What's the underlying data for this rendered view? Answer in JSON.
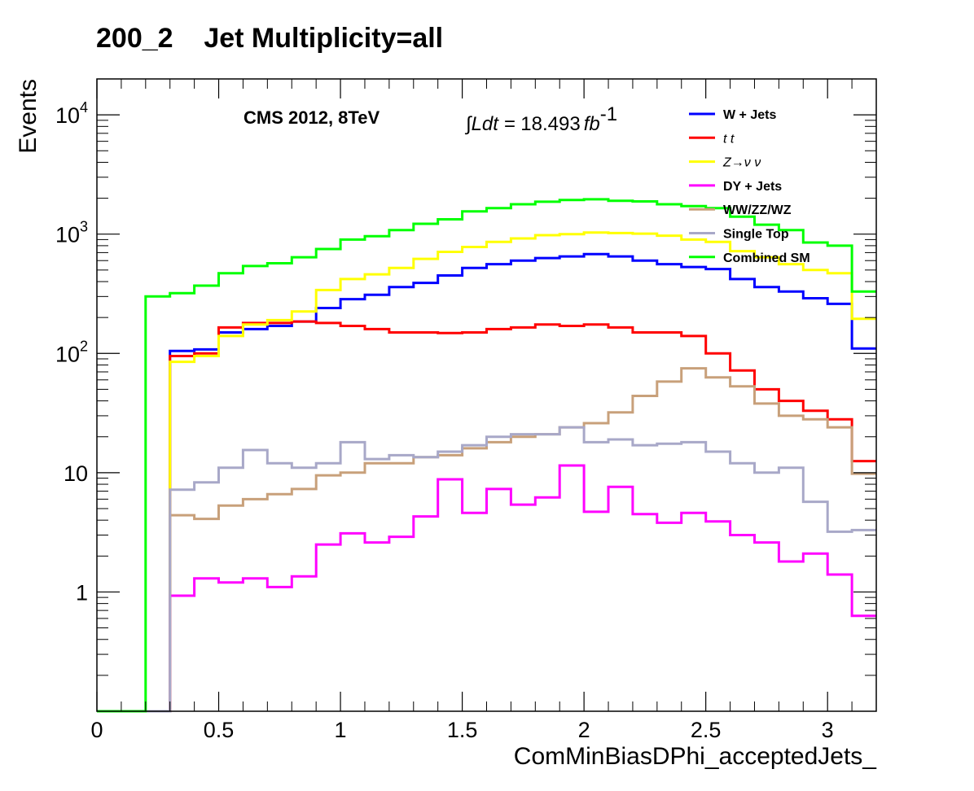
{
  "chart_data": {
    "type": "line",
    "title": "200_2    Jet Multiplicity=all",
    "xlabel": "ComMinBiasDPhi_acceptedJets_",
    "ylabel": "Events",
    "xlim": [
      0,
      3.2
    ],
    "ylim": [
      0.1,
      20000
    ],
    "yscale": "log",
    "x_ticks": [
      0,
      0.5,
      1,
      1.5,
      2,
      2.5,
      3
    ],
    "x_tick_labels": [
      "0",
      "0.5",
      "1",
      "1.5",
      "2",
      "2.5",
      "3"
    ],
    "y_ticks": [
      1,
      10,
      100,
      1000,
      10000
    ],
    "y_tick_labels": [
      {
        "base": "1",
        "exp": ""
      },
      {
        "base": "10",
        "exp": ""
      },
      {
        "base": "10",
        "exp": "2"
      },
      {
        "base": "10",
        "exp": "3"
      },
      {
        "base": "10",
        "exp": "4"
      }
    ],
    "annotations": {
      "cms": "CMS 2012, 8TeV",
      "lumi_prefix": "∫Ldt = ",
      "lumi_value": "18.493",
      "lumi_unit": "fb",
      "lumi_exp": "-1"
    },
    "legend_position": "top-right",
    "bin_edges": [
      0,
      0.1,
      0.2,
      0.3,
      0.4,
      0.5,
      0.6,
      0.7,
      0.8,
      0.9,
      1.0,
      1.1,
      1.2,
      1.3,
      1.4,
      1.5,
      1.6,
      1.7,
      1.8,
      1.9,
      2.0,
      2.1,
      2.2,
      2.3,
      2.4,
      2.5,
      2.6,
      2.7,
      2.8,
      2.9,
      3.0,
      3.1,
      3.2
    ],
    "series": [
      {
        "name": "W + Jets",
        "color": "#0000ff",
        "values": [
          0,
          0,
          0,
          105,
          108,
          150,
          160,
          170,
          185,
          240,
          285,
          310,
          360,
          390,
          450,
          520,
          560,
          600,
          630,
          650,
          680,
          650,
          600,
          560,
          530,
          510,
          420,
          360,
          330,
          290,
          260,
          110
        ]
      },
      {
        "name": "t t",
        "color": "#ff0000",
        "values": [
          0,
          0,
          0,
          95,
          100,
          165,
          180,
          180,
          185,
          180,
          170,
          160,
          150,
          150,
          148,
          150,
          160,
          165,
          175,
          170,
          175,
          165,
          150,
          150,
          140,
          100,
          72,
          50,
          40,
          33,
          28,
          12.5
        ]
      },
      {
        "name": "Z→ν ν",
        "color": "#ffff00",
        "values": [
          0,
          0,
          0,
          85,
          95,
          140,
          175,
          190,
          225,
          340,
          420,
          460,
          520,
          620,
          710,
          780,
          860,
          920,
          980,
          1000,
          1030,
          1020,
          1010,
          970,
          900,
          860,
          720,
          640,
          560,
          500,
          470,
          195
        ]
      },
      {
        "name": "DY + Jets",
        "color": "#ff00ff",
        "values": [
          0,
          0,
          0,
          0.93,
          1.3,
          1.2,
          1.3,
          1.1,
          1.35,
          2.5,
          3.1,
          2.6,
          2.9,
          4.3,
          8.8,
          4.6,
          7.3,
          5.4,
          6.2,
          11.5,
          4.7,
          7.6,
          4.5,
          3.8,
          4.6,
          3.9,
          3.0,
          2.6,
          1.8,
          2.1,
          1.4,
          0.63
        ]
      },
      {
        "name": "WW/ZZ/WZ",
        "color": "#c8a07a",
        "values": [
          0,
          0,
          0,
          4.4,
          4.1,
          5.3,
          6.0,
          6.6,
          7.3,
          9.5,
          10,
          12,
          12,
          13.5,
          14,
          16,
          18,
          20,
          21,
          24,
          26,
          32,
          44,
          58,
          75,
          63,
          53,
          38,
          30,
          28,
          24,
          9.8
        ]
      },
      {
        "name": "Single Top",
        "color": "#a8a8c8",
        "values": [
          0,
          0,
          0,
          7.2,
          8.3,
          11,
          15.5,
          12,
          11,
          12,
          18,
          13,
          14,
          13.5,
          15,
          17,
          20,
          21,
          21,
          24,
          18,
          19,
          17,
          17.5,
          18,
          15,
          12,
          10,
          11,
          5.7,
          3.2,
          3.3
        ]
      },
      {
        "name": "Combined SM",
        "color": "#00ff00",
        "values": [
          0,
          0,
          300,
          320,
          370,
          470,
          540,
          570,
          640,
          750,
          900,
          960,
          1080,
          1220,
          1330,
          1550,
          1650,
          1780,
          1870,
          1930,
          1960,
          1900,
          1880,
          1780,
          1720,
          1650,
          1400,
          1200,
          1080,
          850,
          800,
          330
        ]
      }
    ]
  }
}
